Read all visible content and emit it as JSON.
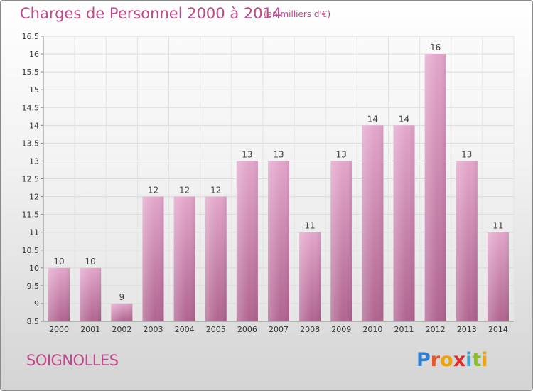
{
  "header": {
    "title": "Charges de Personnel 2000 à 2014",
    "subtitle": "(en milliers d'€)"
  },
  "footer": {
    "commune": "SOIGNOLLES",
    "logo_text": "Proxiti"
  },
  "colors": {
    "accent": "#c2478c",
    "bar_top": "#e3a6cb",
    "bar_bottom": "#b0648f"
  },
  "chart_data": {
    "type": "bar",
    "title": "Charges de Personnel 2000 à 2014",
    "subtitle": "(en milliers d'€)",
    "categories": [
      "2000",
      "2001",
      "2002",
      "2003",
      "2004",
      "2005",
      "2006",
      "2007",
      "2008",
      "2009",
      "2010",
      "2011",
      "2012",
      "2013",
      "2014"
    ],
    "values": [
      10,
      10,
      9,
      12,
      12,
      12,
      13,
      13,
      11,
      13,
      14,
      14,
      16,
      13,
      11
    ],
    "ylim": [
      8.5,
      16.5
    ],
    "yticks": [
      "8.5",
      "9",
      "9.5",
      "10",
      "10.5",
      "11",
      "11.5",
      "12",
      "12.5",
      "13",
      "13.5",
      "14",
      "14.5",
      "15",
      "15.5",
      "16",
      "16.5"
    ],
    "grid": true
  }
}
